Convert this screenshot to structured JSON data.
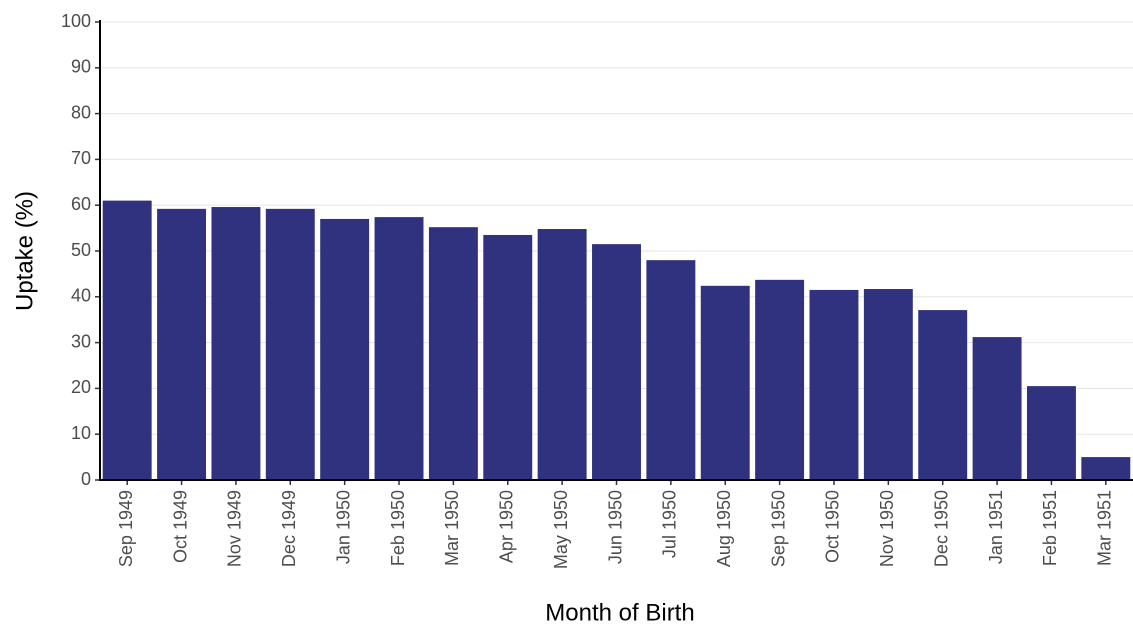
{
  "chart_data": {
    "type": "bar",
    "x_label": "Month of Birth",
    "y_label": "Uptake (%)",
    "categories": [
      "Sep 1949",
      "Oct 1949",
      "Nov 1949",
      "Dec 1949",
      "Jan 1950",
      "Feb 1950",
      "Mar 1950",
      "Apr 1950",
      "May 1950",
      "Jun 1950",
      "Jul 1950",
      "Aug 1950",
      "Sep 1950",
      "Oct 1950",
      "Nov 1950",
      "Dec 1950",
      "Jan 1951",
      "Feb 1951",
      "Mar 1951"
    ],
    "values": [
      61.0,
      59.2,
      59.6,
      59.2,
      57.0,
      57.4,
      55.2,
      53.5,
      54.8,
      51.5,
      48.0,
      42.4,
      43.7,
      41.5,
      41.7,
      37.1,
      31.2,
      20.5,
      5.0
    ],
    "color": "#31327f",
    "ylim": [
      0,
      100
    ],
    "yticks": [
      0,
      10,
      20,
      30,
      40,
      50,
      60,
      70,
      80,
      90,
      100
    ],
    "grid": true
  }
}
